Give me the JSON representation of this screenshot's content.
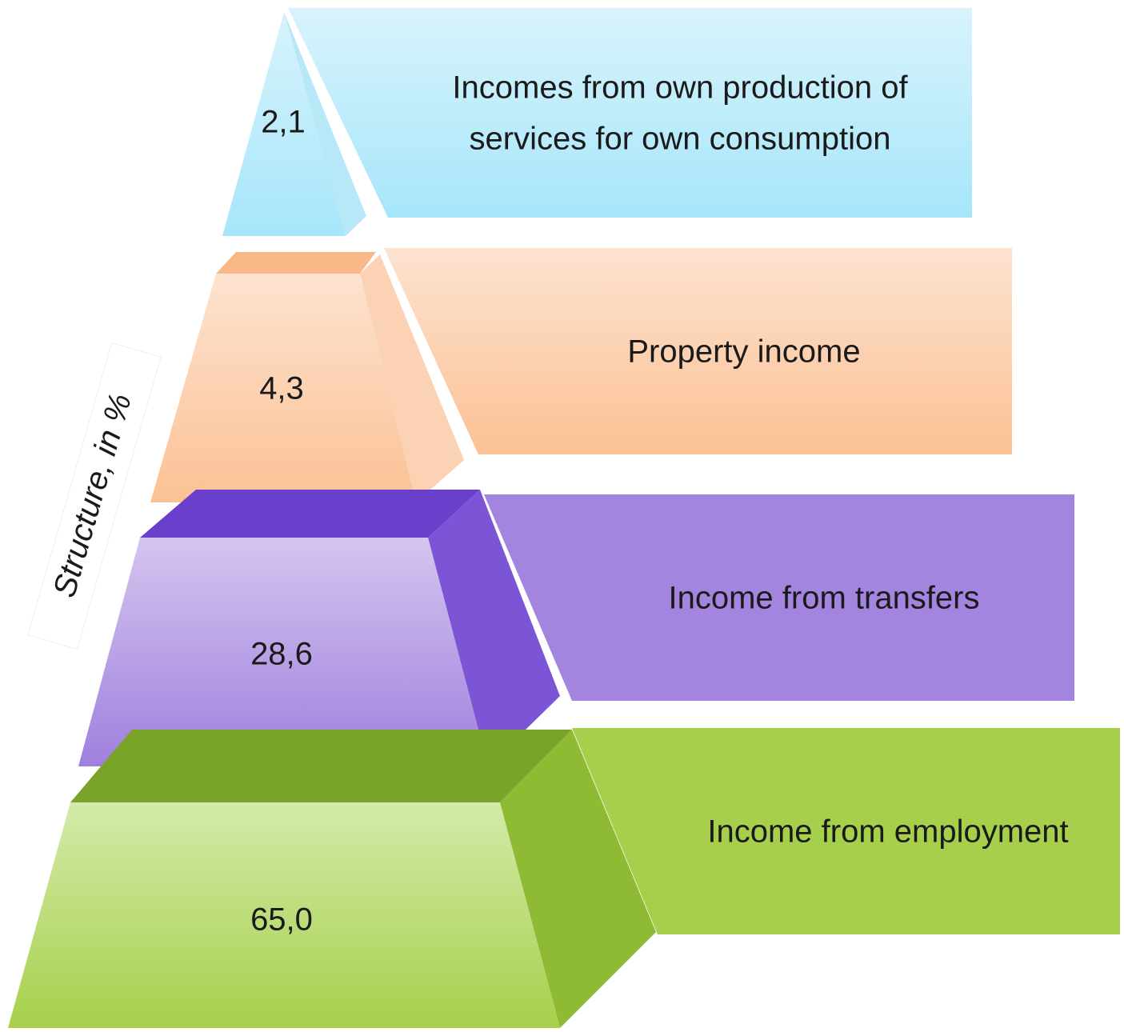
{
  "axis_label": "Structure, in %",
  "layers": [
    {
      "value": "2,1",
      "label_lines": [
        "Incomes from own production of",
        "services for own consumption"
      ]
    },
    {
      "value": "4,3",
      "label_lines": [
        "Property income"
      ]
    },
    {
      "value": "28,6",
      "label_lines": [
        "Income from transfers"
      ]
    },
    {
      "value": "65,0",
      "label_lines": [
        "Income from employment"
      ]
    }
  ]
}
